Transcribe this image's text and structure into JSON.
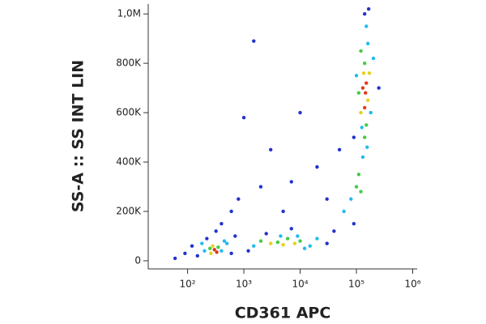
{
  "chart_data": {
    "type": "scatter",
    "x_label": "CD361 APC",
    "y_label": "SS-A :: SS INT LIN",
    "xscale": "log",
    "xlim": [
      20,
      1200000
    ],
    "ylim": [
      -33000,
      1040000
    ],
    "xticks": [
      {
        "value": 100,
        "label": "10²"
      },
      {
        "value": 1000,
        "label": "10³"
      },
      {
        "value": 10000,
        "label": "10⁴"
      },
      {
        "value": 100000,
        "label": "10⁵"
      },
      {
        "value": 1000000,
        "label": "10⁶"
      }
    ],
    "yticks": [
      0,
      {
        "value": 200000,
        "label": "200K"
      },
      {
        "value": 400000,
        "label": "400K"
      },
      {
        "value": 600000,
        "label": "600K"
      },
      {
        "value": 800000,
        "label": "800K"
      },
      {
        "value": 1000000,
        "label": "1,0M"
      }
    ],
    "x": [
      150,
      200,
      250,
      300,
      280,
      350,
      400,
      500,
      220,
      320,
      600,
      120,
      400,
      260,
      330,
      180,
      700,
      90,
      60,
      450,
      1500,
      2000,
      3000,
      4000,
      5000,
      6000,
      8000,
      10000,
      15000,
      20000,
      2500,
      7000,
      12000,
      30000,
      1200,
      4500,
      9000,
      40000,
      60000,
      80000,
      100000,
      110000,
      120000,
      90000,
      130000,
      140000,
      150000,
      120000,
      140000,
      160000,
      130000,
      150000,
      170000,
      140000,
      120000,
      160000,
      150000,
      110000,
      180000,
      135000,
      145000,
      100000,
      200000,
      140000,
      165000,
      90000,
      125000,
      155000,
      250000,
      2000,
      3000,
      800,
      20000,
      1000,
      5000,
      30000,
      600,
      10000,
      1500,
      50000,
      7000
    ],
    "values": [
      20000,
      40000,
      50000,
      45000,
      60000,
      55000,
      40000,
      70000,
      90000,
      120000,
      30000,
      60000,
      150000,
      30000,
      35000,
      70000,
      100000,
      30000,
      10000,
      80000,
      60000,
      80000,
      70000,
      75000,
      65000,
      90000,
      70000,
      80000,
      60000,
      90000,
      110000,
      130000,
      50000,
      70000,
      40000,
      100000,
      100000,
      120000,
      200000,
      250000,
      300000,
      350000,
      280000,
      150000,
      420000,
      500000,
      550000,
      600000,
      620000,
      650000,
      700000,
      720000,
      760000,
      800000,
      850000,
      880000,
      950000,
      680000,
      600000,
      760000,
      680000,
      750000,
      820000,
      1000000,
      1020000,
      500000,
      540000,
      460000,
      700000,
      300000,
      450000,
      250000,
      380000,
      580000,
      200000,
      250000,
      200000,
      600000,
      890000,
      450000,
      320000
    ],
    "colors": [
      "#2233cc",
      "#22bbee",
      "#44cc44",
      "#e03a20",
      "#e6d020",
      "#44cc44",
      "#22bbee",
      "#22bbee",
      "#2233cc",
      "#2233cc",
      "#2233cc",
      "#2233cc",
      "#2233cc",
      "#e6d020",
      "#e03a20",
      "#22bbee",
      "#2233cc",
      "#2233cc",
      "#2233cc",
      "#22bbee",
      "#22bbee",
      "#44cc44",
      "#e6d020",
      "#44cc44",
      "#e6d020",
      "#44cc44",
      "#e6d020",
      "#44cc44",
      "#22bbee",
      "#22bbee",
      "#2233cc",
      "#2233cc",
      "#22bbee",
      "#2233cc",
      "#2233cc",
      "#22bbee",
      "#22bbee",
      "#2233cc",
      "#22bbee",
      "#22bbee",
      "#44cc44",
      "#44cc44",
      "#44cc44",
      "#2233cc",
      "#22bbee",
      "#44cc44",
      "#44cc44",
      "#e6d020",
      "#e03a20",
      "#e6d020",
      "#e03a20",
      "#e03a20",
      "#e6d020",
      "#44cc44",
      "#44cc44",
      "#22bbee",
      "#22bbee",
      "#44cc44",
      "#22bbee",
      "#e6d020",
      "#e03a20",
      "#22bbee",
      "#22bbee",
      "#2233cc",
      "#2233cc",
      "#2233cc",
      "#22bbee",
      "#22bbee",
      "#2233cc",
      "#2233cc",
      "#2233cc",
      "#2233cc",
      "#2233cc",
      "#2233cc",
      "#2233cc",
      "#2233cc",
      "#2233cc",
      "#2233cc",
      "#2233cc",
      "#2233cc",
      "#2233cc"
    ]
  }
}
